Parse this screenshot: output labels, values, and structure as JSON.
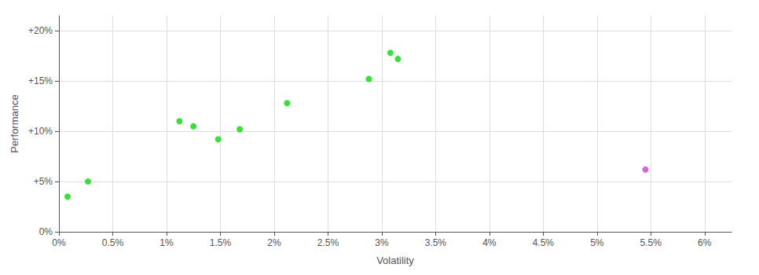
{
  "chart_data": {
    "type": "scatter",
    "xlabel": "Volatility",
    "ylabel": "Performance",
    "series": [
      {
        "color": "#00dd00",
        "x": [
          0.08,
          0.27,
          1.12,
          1.25,
          1.48,
          1.68,
          2.12,
          2.88,
          3.08,
          3.15
        ],
        "values": [
          3.5,
          5.0,
          11.0,
          10.5,
          9.2,
          10.2,
          12.8,
          15.2,
          17.8,
          17.2
        ]
      },
      {
        "color": "#cc44cc",
        "x": [
          5.45
        ],
        "values": [
          6.2
        ]
      }
    ],
    "xlim": [
      0.0,
      6.25
    ],
    "ylim": [
      0.0,
      21.5
    ],
    "xticks": [
      {
        "value": 0.0,
        "label": "0%"
      },
      {
        "value": 0.5,
        "label": "0.5%"
      },
      {
        "value": 1.0,
        "label": "1%"
      },
      {
        "value": 1.5,
        "label": "1.5%"
      },
      {
        "value": 2.0,
        "label": "2%"
      },
      {
        "value": 2.5,
        "label": "2.5%"
      },
      {
        "value": 3.0,
        "label": "3%"
      },
      {
        "value": 3.5,
        "label": "3.5%"
      },
      {
        "value": 4.0,
        "label": "4%"
      },
      {
        "value": 4.5,
        "label": "4.5%"
      },
      {
        "value": 5.0,
        "label": "5%"
      },
      {
        "value": 5.5,
        "label": "5.5%"
      },
      {
        "value": 6.0,
        "label": "6%"
      }
    ],
    "yticks": [
      {
        "value": 0.0,
        "label": "0%"
      },
      {
        "value": 5.0,
        "label": "+5%"
      },
      {
        "value": 10.0,
        "label": "+10%"
      },
      {
        "value": 15.0,
        "label": "+15%"
      },
      {
        "value": 20.0,
        "label": "+20%"
      }
    ],
    "grid": true
  }
}
